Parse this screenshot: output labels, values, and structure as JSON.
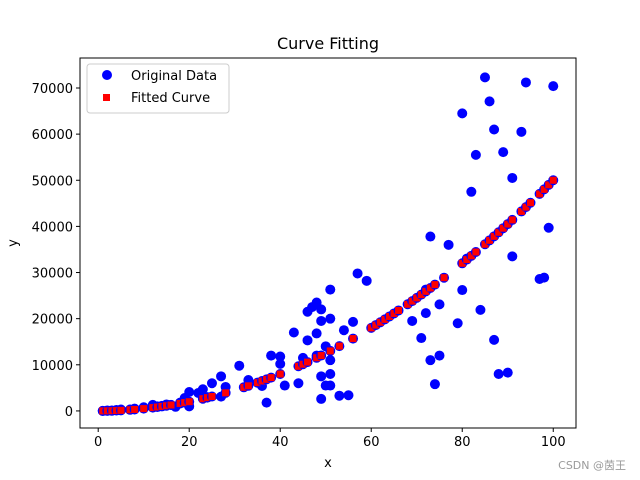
{
  "chart_data": {
    "type": "scatter",
    "title": "Curve Fitting",
    "xlabel": "x",
    "ylabel": "y",
    "xlim": [
      -4,
      105
    ],
    "ylim": [
      -3700,
      76500
    ],
    "xticks": [
      0,
      20,
      40,
      60,
      80,
      100
    ],
    "yticks": [
      0,
      10000,
      20000,
      30000,
      40000,
      50000,
      60000,
      70000
    ],
    "xtick_labels": [
      "0",
      "20",
      "40",
      "60",
      "80",
      "100"
    ],
    "ytick_labels": [
      "0",
      "10000",
      "20000",
      "30000",
      "40000",
      "50000",
      "60000",
      "70000"
    ],
    "grid": false,
    "legend_position": "top-left",
    "series": [
      {
        "name": "Original Data",
        "marker": "circle",
        "color": "#0000ff",
        "points": [
          [
            1,
            0
          ],
          [
            2,
            100
          ],
          [
            3,
            80
          ],
          [
            4,
            200
          ],
          [
            5,
            300
          ],
          [
            7,
            300
          ],
          [
            8,
            500
          ],
          [
            10,
            800
          ],
          [
            12,
            1300
          ],
          [
            13,
            1000
          ],
          [
            14,
            1100
          ],
          [
            15,
            1400
          ],
          [
            16,
            1300
          ],
          [
            17,
            900
          ],
          [
            18,
            1800
          ],
          [
            19,
            2800
          ],
          [
            20,
            1000
          ],
          [
            20,
            4100
          ],
          [
            22,
            3900
          ],
          [
            23,
            4700
          ],
          [
            24,
            3000
          ],
          [
            25,
            6000
          ],
          [
            27,
            3100
          ],
          [
            27,
            7500
          ],
          [
            28,
            5200
          ],
          [
            31,
            9800
          ],
          [
            33,
            6700
          ],
          [
            36,
            5400
          ],
          [
            37,
            1800
          ],
          [
            38,
            12000
          ],
          [
            40,
            11800
          ],
          [
            40,
            10200
          ],
          [
            41,
            5500
          ],
          [
            43,
            17000
          ],
          [
            44,
            6000
          ],
          [
            45,
            11500
          ],
          [
            46,
            15300
          ],
          [
            46,
            21500
          ],
          [
            47,
            22500
          ],
          [
            48,
            23500
          ],
          [
            48,
            12000
          ],
          [
            48,
            16800
          ],
          [
            49,
            19500
          ],
          [
            49,
            22000
          ],
          [
            49,
            7500
          ],
          [
            49,
            2600
          ],
          [
            50,
            5500
          ],
          [
            50,
            14000
          ],
          [
            51,
            26300
          ],
          [
            51,
            20000
          ],
          [
            51,
            11000
          ],
          [
            51,
            8000
          ],
          [
            51,
            5500
          ],
          [
            53,
            3300
          ],
          [
            54,
            17500
          ],
          [
            55,
            3400
          ],
          [
            56,
            19300
          ],
          [
            57,
            29800
          ],
          [
            59,
            28200
          ],
          [
            69,
            19500
          ],
          [
            71,
            15800
          ],
          [
            72,
            21200
          ],
          [
            72,
            26300
          ],
          [
            73,
            37800
          ],
          [
            73,
            11000
          ],
          [
            74,
            5800
          ],
          [
            75,
            12000
          ],
          [
            75,
            23100
          ],
          [
            77,
            36000
          ],
          [
            79,
            19000
          ],
          [
            80,
            26200
          ],
          [
            80,
            64500
          ],
          [
            81,
            33000
          ],
          [
            82,
            47500
          ],
          [
            83,
            55500
          ],
          [
            84,
            21900
          ],
          [
            85,
            72300
          ],
          [
            86,
            67100
          ],
          [
            87,
            61000
          ],
          [
            87,
            15400
          ],
          [
            88,
            8000
          ],
          [
            89,
            56100
          ],
          [
            90,
            8300
          ],
          [
            91,
            50500
          ],
          [
            91,
            33500
          ],
          [
            93,
            60500
          ],
          [
            94,
            71200
          ],
          [
            97,
            28600
          ],
          [
            98,
            28900
          ],
          [
            99,
            39700
          ],
          [
            100,
            70400
          ]
        ]
      },
      {
        "name": "Fitted Curve",
        "marker": "square",
        "color": "#ff0000",
        "fit_formula": "y = 5 * x^2",
        "x": [
          1,
          2,
          3,
          4,
          5,
          7,
          8,
          10,
          12,
          13,
          14,
          15,
          16,
          18,
          19,
          20,
          23,
          24,
          25,
          28,
          32,
          33,
          35,
          36,
          37,
          38,
          40,
          44,
          45,
          46,
          48,
          49,
          51,
          53,
          56,
          60,
          61,
          62,
          63,
          64,
          65,
          66,
          68,
          69,
          70,
          71,
          72,
          73,
          74,
          76,
          80,
          81,
          82,
          83,
          85,
          86,
          87,
          88,
          89,
          90,
          91,
          93,
          94,
          95,
          97,
          98,
          99,
          100
        ]
      }
    ]
  },
  "watermark": "CSDN @茵王"
}
